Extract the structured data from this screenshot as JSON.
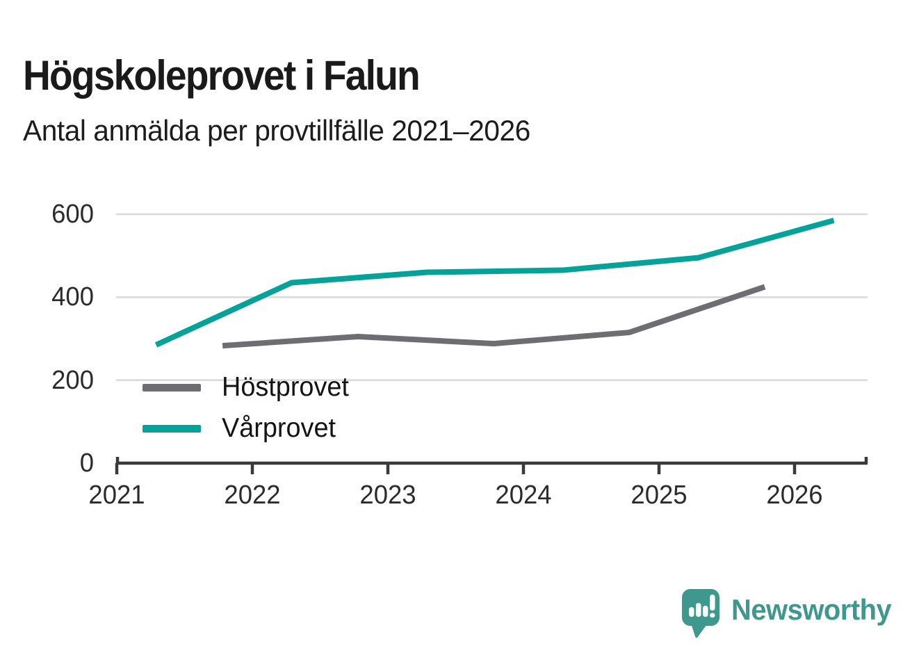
{
  "header": {
    "title": "Högskoleprovet i Falun",
    "subtitle": "Antal anmälda per provtillfälle 2021–2026"
  },
  "chart_data": {
    "type": "line",
    "title": "Högskoleprovet i Falun",
    "subtitle": "Antal anmälda per provtillfälle 2021–2026",
    "xlabel": "",
    "ylabel": "",
    "xlim": [
      2021,
      2026.55
    ],
    "ylim": [
      0,
      600
    ],
    "xticks": [
      2021,
      2022,
      2023,
      2024,
      2025,
      2026
    ],
    "yticks": [
      0,
      200,
      400,
      600
    ],
    "grid": "horizontal",
    "legend_position": "inside-left",
    "series": [
      {
        "name": "Höstprovet",
        "color": "#6e6e72",
        "season": "autumn",
        "points": [
          {
            "x": 2021.78,
            "y": 283
          },
          {
            "x": 2022.78,
            "y": 305
          },
          {
            "x": 2023.78,
            "y": 288
          },
          {
            "x": 2024.78,
            "y": 315
          },
          {
            "x": 2025.78,
            "y": 425
          }
        ]
      },
      {
        "name": "Vårprovet",
        "color": "#05a29a",
        "season": "spring",
        "points": [
          {
            "x": 2021.29,
            "y": 285
          },
          {
            "x": 2022.29,
            "y": 435
          },
          {
            "x": 2023.29,
            "y": 460
          },
          {
            "x": 2024.29,
            "y": 465
          },
          {
            "x": 2025.29,
            "y": 495
          },
          {
            "x": 2026.29,
            "y": 585
          }
        ]
      }
    ],
    "colors": {
      "gridline": "#d9d9d9",
      "axis": "#3a3a3a",
      "tick_label": "#2b2b2b"
    }
  },
  "footer": {
    "brand": "Newsworthy",
    "brand_color": "#3e988e"
  }
}
